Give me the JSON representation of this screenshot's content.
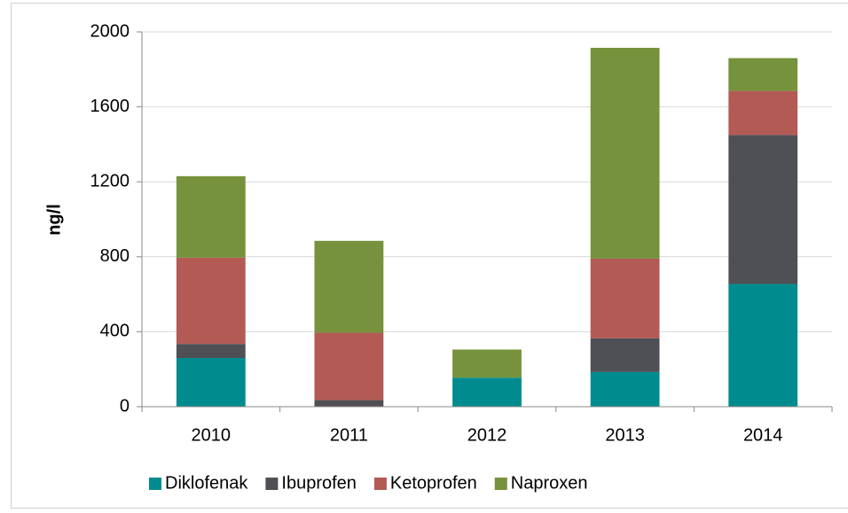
{
  "chart_data": {
    "type": "stacked_bar",
    "categories": [
      "2010",
      "2011",
      "2012",
      "2013",
      "2014"
    ],
    "y_label": "ng/l",
    "series": [
      {
        "name": "Diklofenak",
        "color": "#008b8f",
        "values": [
          260,
          0,
          155,
          185,
          655
        ]
      },
      {
        "name": "Ibuprofen",
        "color": "#4f5055",
        "values": [
          75,
          35,
          0,
          180,
          795
        ]
      },
      {
        "name": "Ketoprofen",
        "color": "#b35a55",
        "values": [
          460,
          360,
          0,
          425,
          235
        ]
      },
      {
        "name": "Naproxen",
        "color": "#76923c",
        "values": [
          435,
          490,
          150,
          1125,
          175
        ]
      }
    ],
    "ylim": [
      0,
      2000
    ],
    "yticks": [
      0,
      400,
      800,
      1200,
      1600,
      2000
    ],
    "grid": true,
    "legend": "bottom"
  }
}
